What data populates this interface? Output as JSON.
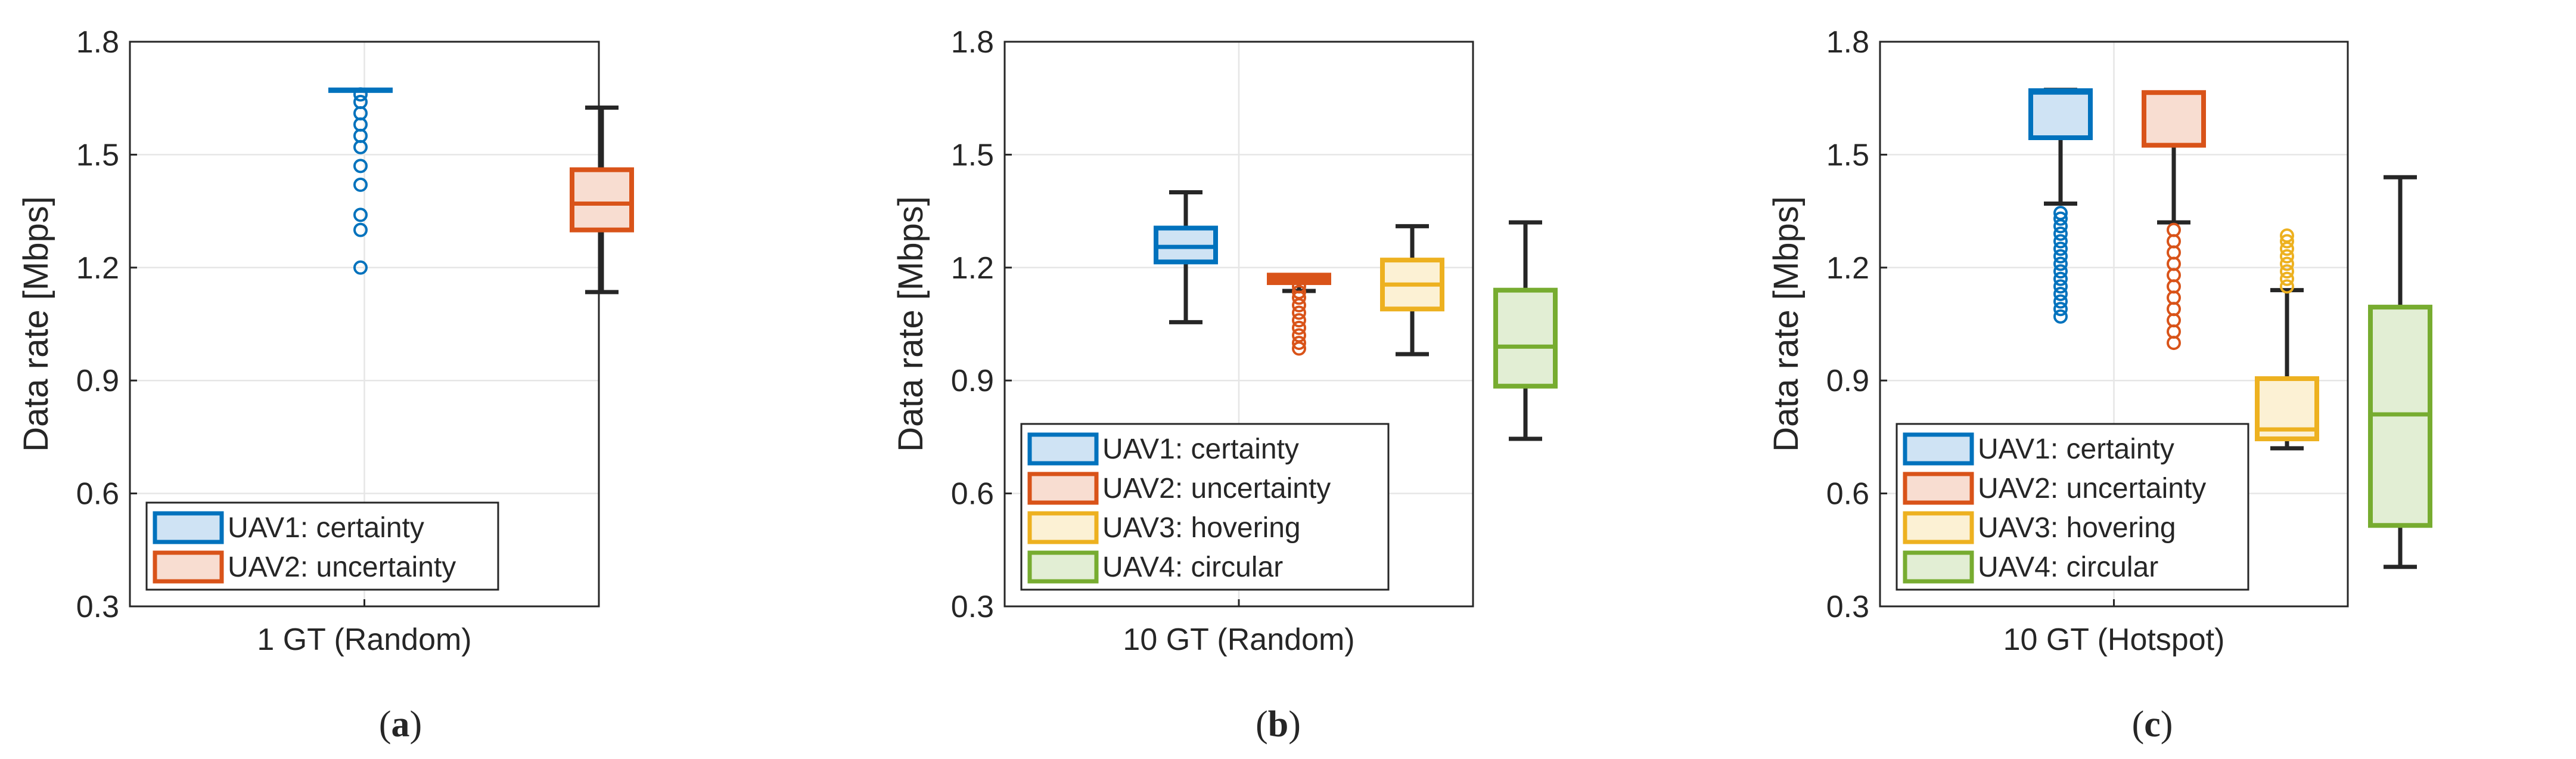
{
  "chart_data": [
    {
      "type": "box",
      "caption": "(a)",
      "caption_letter": "a",
      "xlabel": "1 GT (Random)",
      "ylabel": "Data rate [Mbps]",
      "ylim": [
        0.3,
        1.8
      ],
      "yticks": [
        "0.3",
        "0.6",
        "0.9",
        "1.2",
        "1.5",
        "1.8"
      ],
      "grid": true,
      "legend_position": "bottom-left",
      "series": [
        {
          "name": "UAV1: certainty",
          "color": "#0072BD",
          "fill": "#cfe3f4",
          "min": 1.672,
          "q1": 1.672,
          "median": 1.672,
          "q3": 1.672,
          "max": 1.672,
          "outliers": [
            1.2,
            1.3,
            1.34,
            1.42,
            1.47,
            1.52,
            1.55,
            1.58,
            1.61,
            1.64,
            1.66
          ]
        },
        {
          "name": "UAV2: uncertainty",
          "color": "#D95319",
          "fill": "#f8ddd1",
          "min": 1.135,
          "q1": 1.3,
          "median": 1.37,
          "q3": 1.46,
          "max": 1.625,
          "outliers": []
        }
      ]
    },
    {
      "type": "box",
      "caption": "(b)",
      "caption_letter": "b",
      "xlabel": "10 GT (Random)",
      "ylabel": "Data rate [Mbps]",
      "ylim": [
        0.3,
        1.8
      ],
      "yticks": [
        "0.3",
        "0.6",
        "0.9",
        "1.2",
        "1.5",
        "1.8"
      ],
      "grid": true,
      "legend_position": "bottom-left",
      "series": [
        {
          "name": "UAV1: certainty",
          "color": "#0072BD",
          "fill": "#cfe3f4",
          "min": 1.055,
          "q1": 1.215,
          "median": 1.255,
          "q3": 1.305,
          "max": 1.4,
          "outliers": []
        },
        {
          "name": "UAV2: uncertainty",
          "color": "#D95319",
          "fill": "#f8ddd1",
          "min": 1.138,
          "q1": 1.16,
          "median": 1.17,
          "q3": 1.18,
          "max": 1.18,
          "outliers": [
            0.985,
            1.0,
            1.02,
            1.04,
            1.06,
            1.08,
            1.1,
            1.12,
            1.135,
            1.15
          ]
        },
        {
          "name": "UAV3: hovering",
          "color": "#EDB120",
          "fill": "#fcf1d4",
          "min": 0.97,
          "q1": 1.09,
          "median": 1.155,
          "q3": 1.22,
          "max": 1.31,
          "outliers": []
        },
        {
          "name": "UAV4: circular",
          "color": "#77AC30",
          "fill": "#e2eed4",
          "min": 0.745,
          "q1": 0.885,
          "median": 0.99,
          "q3": 1.14,
          "max": 1.32,
          "outliers": []
        }
      ]
    },
    {
      "type": "box",
      "caption": "(c)",
      "caption_letter": "c",
      "xlabel": "10 GT (Hotspot)",
      "ylabel": "Data rate [Mbps]",
      "ylim": [
        0.3,
        1.8
      ],
      "yticks": [
        "0.3",
        "0.6",
        "0.9",
        "1.2",
        "1.5",
        "1.8"
      ],
      "grid": true,
      "legend_position": "bottom-left",
      "series": [
        {
          "name": "UAV1: certainty",
          "color": "#0072BD",
          "fill": "#cfe3f4",
          "min": 1.37,
          "q1": 1.545,
          "median": 1.665,
          "q3": 1.67,
          "max": 1.672,
          "outliers": [
            1.07,
            1.09,
            1.11,
            1.13,
            1.15,
            1.17,
            1.19,
            1.21,
            1.23,
            1.25,
            1.27,
            1.29,
            1.31,
            1.33,
            1.345
          ]
        },
        {
          "name": "UAV2: uncertainty",
          "color": "#D95319",
          "fill": "#f8ddd1",
          "min": 1.32,
          "q1": 1.525,
          "median": 1.525,
          "q3": 1.665,
          "max": 1.665,
          "outliers": [
            1.0,
            1.03,
            1.06,
            1.09,
            1.12,
            1.15,
            1.18,
            1.21,
            1.24,
            1.27,
            1.3
          ]
        },
        {
          "name": "UAV3: hovering",
          "color": "#EDB120",
          "fill": "#fcf1d4",
          "min": 0.72,
          "q1": 0.745,
          "median": 0.77,
          "q3": 0.905,
          "max": 1.14,
          "outliers": [
            1.15,
            1.17,
            1.19,
            1.21,
            1.23,
            1.25,
            1.27,
            1.285
          ]
        },
        {
          "name": "UAV4: circular",
          "color": "#77AC30",
          "fill": "#e2eed4",
          "min": 0.405,
          "q1": 0.515,
          "median": 0.81,
          "q3": 1.095,
          "max": 1.44,
          "outliers": []
        }
      ]
    }
  ]
}
